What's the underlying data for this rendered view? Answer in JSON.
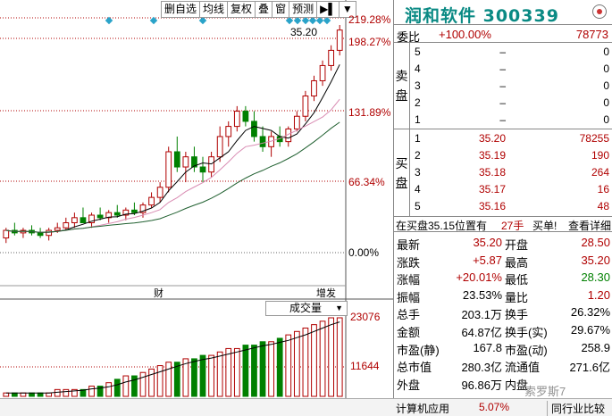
{
  "toolbar": {
    "items": [
      "删自选",
      "均线",
      "复权",
      "叠",
      "窗",
      "预测",
      "▶▌",
      "▼"
    ]
  },
  "price_axis": {
    "labels": [
      "219.28%",
      "198.27%",
      "131.89%",
      "66.34%",
      "0.00%"
    ],
    "high_price": "35.20"
  },
  "volume_axis": {
    "labels": [
      "23076",
      "11644"
    ],
    "indicator": "成交量"
  },
  "quote": {
    "title": "润和软件 300339",
    "webi": {
      "label": "委比",
      "pct": "+100.00%",
      "diff": "78773"
    },
    "ask_side_label": [
      "卖",
      "盘"
    ],
    "bid_side_label": [
      "买",
      "盘"
    ],
    "asks": [
      {
        "n": "5",
        "price": "–",
        "vol": "0"
      },
      {
        "n": "4",
        "price": "–",
        "vol": "0"
      },
      {
        "n": "3",
        "price": "–",
        "vol": "0"
      },
      {
        "n": "2",
        "price": "–",
        "vol": "0"
      },
      {
        "n": "1",
        "price": "–",
        "vol": "0"
      }
    ],
    "bids": [
      {
        "n": "1",
        "price": "35.20",
        "vol": "78255"
      },
      {
        "n": "2",
        "price": "35.19",
        "vol": "190"
      },
      {
        "n": "3",
        "price": "35.18",
        "vol": "264"
      },
      {
        "n": "4",
        "price": "35.17",
        "vol": "16"
      },
      {
        "n": "5",
        "price": "35.16",
        "vol": "48"
      }
    ],
    "trade_hint": {
      "text": "在买盘35.15位置有",
      "count": "27手",
      "action": "买单!",
      "detail": "查看详细"
    },
    "stats": [
      {
        "l1": "最新",
        "v1": "35.20",
        "l2": "开盘",
        "v2": "28.50"
      },
      {
        "l1": "涨跌",
        "v1": "+5.87",
        "l2": "最高",
        "v2": "35.20"
      },
      {
        "l1": "涨幅",
        "v1": "+20.01%",
        "l2": "最低",
        "v2": "28.30"
      },
      {
        "l1": "振幅",
        "v1": "23.53%",
        "l2": "量比",
        "v2": "1.20"
      },
      {
        "l1": "总手",
        "v1": "203.1万",
        "l2": "换手",
        "v2": "26.32%"
      },
      {
        "l1": "金额",
        "v1": "64.87亿",
        "l2": "换手(实)",
        "v2": "29.67%"
      },
      {
        "l1": "市盈(静)",
        "v1": "167.8",
        "l2": "市盈(动)",
        "v2": "258.9"
      },
      {
        "l1": "总市值",
        "v1": "280.3亿",
        "l2": "流通值",
        "v2": "271.6亿"
      },
      {
        "l1": "外盘",
        "v1": "96.86万",
        "l2": "内盘",
        "v2": ""
      }
    ]
  },
  "bottom_bar": {
    "left": "计算机应用",
    "pct": "5.07%",
    "right": "同行业比较"
  },
  "watermark": "索罗斯7",
  "markers": {
    "cai": "财",
    "zeng": "增发"
  },
  "chart_data": {
    "type": "candlestick",
    "candles": [
      [
        0.8,
        1.0,
        0.7,
        0.95
      ],
      [
        0.95,
        1.1,
        0.85,
        0.9
      ],
      [
        0.9,
        1.0,
        0.8,
        0.95
      ],
      [
        0.95,
        1.05,
        0.85,
        0.9
      ],
      [
        0.9,
        1.0,
        0.8,
        0.85
      ],
      [
        0.85,
        1.0,
        0.75,
        0.95
      ],
      [
        0.95,
        1.1,
        0.9,
        1.0
      ],
      [
        1.0,
        1.2,
        0.95,
        1.1
      ],
      [
        1.1,
        1.3,
        1.0,
        1.2
      ],
      [
        1.2,
        1.4,
        1.1,
        1.1
      ],
      [
        1.1,
        1.3,
        1.0,
        1.25
      ],
      [
        1.25,
        1.4,
        1.15,
        1.2
      ],
      [
        1.2,
        1.35,
        1.1,
        1.3
      ],
      [
        1.3,
        1.45,
        1.2,
        1.25
      ],
      [
        1.25,
        1.4,
        1.15,
        1.35
      ],
      [
        1.35,
        1.5,
        1.25,
        1.3
      ],
      [
        1.3,
        1.5,
        1.2,
        1.45
      ],
      [
        1.45,
        1.7,
        1.4,
        1.6
      ],
      [
        1.6,
        1.9,
        1.5,
        1.8
      ],
      [
        1.8,
        2.6,
        1.7,
        2.5
      ],
      [
        2.5,
        2.8,
        2.1,
        2.2
      ],
      [
        2.2,
        2.5,
        1.9,
        2.4
      ],
      [
        2.4,
        2.6,
        2.1,
        2.2
      ],
      [
        2.2,
        2.4,
        1.9,
        2.1
      ],
      [
        2.1,
        2.5,
        2.0,
        2.4
      ],
      [
        2.4,
        3.0,
        2.3,
        2.8
      ],
      [
        2.8,
        3.1,
        2.6,
        3.0
      ],
      [
        3.0,
        3.4,
        2.9,
        3.3
      ],
      [
        3.3,
        3.4,
        3.0,
        3.1
      ],
      [
        3.1,
        3.3,
        2.7,
        2.8
      ],
      [
        2.8,
        3.0,
        2.5,
        2.6
      ],
      [
        2.6,
        2.9,
        2.4,
        2.8
      ],
      [
        2.8,
        3.0,
        2.6,
        2.7
      ],
      [
        2.7,
        3.0,
        2.6,
        2.95
      ],
      [
        2.95,
        3.3,
        2.9,
        3.2
      ],
      [
        3.2,
        3.7,
        3.1,
        3.6
      ],
      [
        3.6,
        4.0,
        3.5,
        3.9
      ],
      [
        3.9,
        4.3,
        3.8,
        4.2
      ],
      [
        4.2,
        4.6,
        4.1,
        4.5
      ],
      [
        4.5,
        5.0,
        4.4,
        4.9
      ]
    ],
    "volumes": [
      1,
      1,
      1,
      1,
      1,
      1,
      2,
      2,
      2,
      2,
      3,
      3,
      4,
      5,
      6,
      6,
      7,
      8,
      9,
      10,
      10,
      11,
      11,
      12,
      12,
      13,
      14,
      14,
      15,
      15,
      16,
      16,
      17,
      18,
      19,
      20,
      21,
      22,
      23,
      23
    ],
    "ylim": [
      0.0,
      5.0
    ],
    "volume_ylim": [
      0,
      23076
    ]
  }
}
